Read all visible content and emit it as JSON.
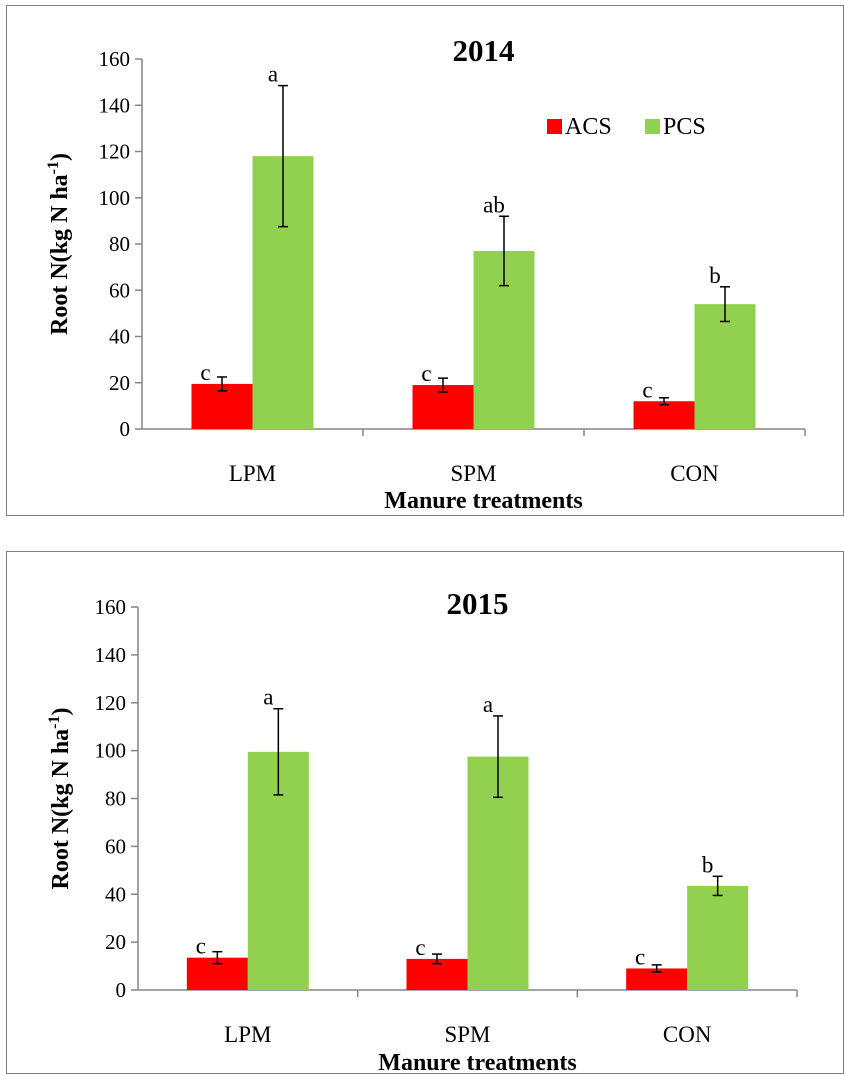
{
  "colors": {
    "ACS": "#ff0000",
    "PCS": "#92d050",
    "axis": "#868686",
    "error_bar": "#000000"
  },
  "chart_data": [
    {
      "type": "bar",
      "title": "2014",
      "xlabel": "Manure treatments",
      "ylabel": "Root N(kg N ha",
      "ylabel_sup": "-1",
      "ylabel_close": ")",
      "categories": [
        "LPM",
        "SPM",
        "CON"
      ],
      "ylim": [
        0,
        160
      ],
      "yticks": [
        0,
        20,
        40,
        60,
        80,
        100,
        120,
        140,
        160
      ],
      "ytick_labels": [
        "0",
        "20",
        "40",
        "60",
        "80",
        "100",
        "120",
        "140",
        "160"
      ],
      "legend": {
        "position": "top-right",
        "entries": [
          "ACS",
          "PCS"
        ]
      },
      "grid": false,
      "series": [
        {
          "name": "ACS",
          "values": [
            19.5,
            19,
            12
          ],
          "error": [
            3,
            3,
            1.5
          ],
          "labels": [
            "c",
            "c",
            "c"
          ]
        },
        {
          "name": "PCS",
          "values": [
            118,
            77,
            54
          ],
          "error": [
            30.5,
            15,
            7.5
          ],
          "labels": [
            "a",
            "ab",
            "b"
          ]
        }
      ]
    },
    {
      "type": "bar",
      "title": "2015",
      "xlabel": "Manure treatments",
      "ylabel": "Root N(kg N ha",
      "ylabel_sup": "-1",
      "ylabel_close": ")",
      "categories": [
        "LPM",
        "SPM",
        "CON"
      ],
      "ylim": [
        0,
        160
      ],
      "yticks": [
        0,
        20,
        40,
        60,
        80,
        100,
        120,
        140,
        160
      ],
      "ytick_labels": [
        "0",
        "20",
        "40",
        "60",
        "80",
        "100",
        "120",
        "140",
        "160"
      ],
      "legend": null,
      "grid": false,
      "series": [
        {
          "name": "ACS",
          "values": [
            13.5,
            13,
            9
          ],
          "error": [
            2.5,
            2,
            1.5
          ],
          "labels": [
            "c",
            "c",
            "c"
          ]
        },
        {
          "name": "PCS",
          "values": [
            99.5,
            97.5,
            43.5
          ],
          "error": [
            18,
            17,
            4
          ],
          "labels": [
            "a",
            "a",
            "b"
          ]
        }
      ]
    }
  ]
}
